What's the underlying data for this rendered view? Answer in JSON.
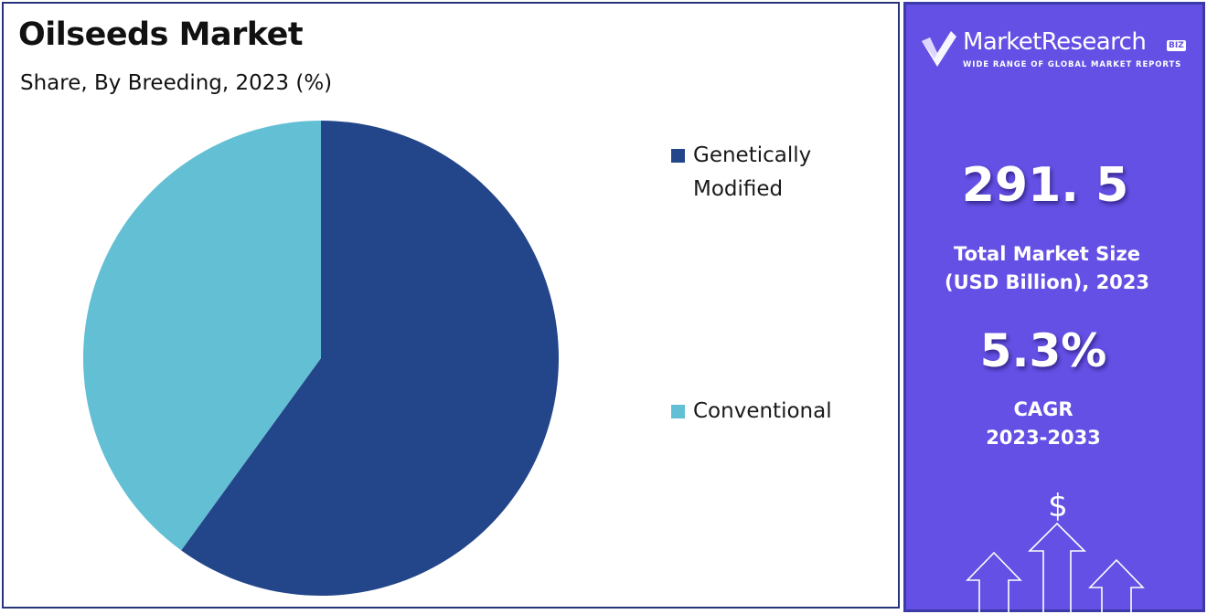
{
  "title": "Oilseeds Market",
  "subtitle": "Share, By Breeding, 2023 (%)",
  "chart_data": {
    "type": "pie",
    "title": "Oilseeds Market",
    "subtitle": "Share, By Breeding, 2023 (%)",
    "slices": [
      {
        "label": "Genetically Modified",
        "value": 60,
        "color": "#234589"
      },
      {
        "label": "Conventional",
        "value": 40,
        "color": "#62bfd4"
      }
    ],
    "start_angle_deg": 0,
    "direction": "clockwise",
    "legend": "right"
  },
  "legend": {
    "genetically_modified": "Genetically Modified",
    "conventional": "Conventional"
  },
  "colors": {
    "gm": "#234589",
    "conventional": "#62bfd4",
    "panel": "#6450e4",
    "border": "#27337a"
  },
  "sidebar": {
    "logo_name": "MarketResearch",
    "logo_biz": "BIZ",
    "logo_tagline": "WIDE RANGE OF GLOBAL MARKET REPORTS",
    "market_size_value": "291. 5",
    "market_size_caption_line1": "Total Market Size",
    "market_size_caption_line2": "(USD Billion), 2023",
    "cagr_value": "5.3%",
    "cagr_caption_line1": "CAGR",
    "cagr_caption_line2": "2023-2033",
    "dollar_symbol": "$",
    "logo_icon": "check-mark-logo-icon",
    "arrows_icon": "growth-arrows-icon"
  }
}
